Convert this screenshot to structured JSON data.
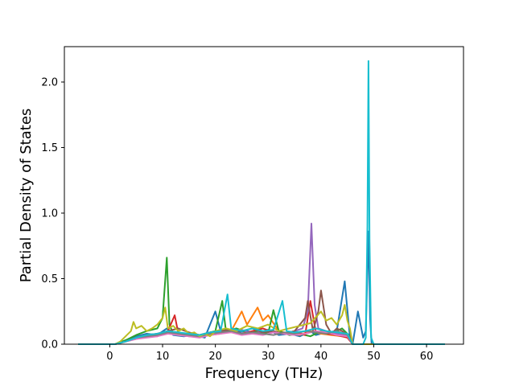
{
  "chart_data": {
    "type": "line",
    "title": "",
    "xlabel": "Frequency (THz)",
    "ylabel": "Partial Density of States",
    "xlim": [
      -8.6,
      67.0
    ],
    "ylim": [
      0.0,
      2.27
    ],
    "xticks": [
      0,
      10,
      20,
      30,
      40,
      50,
      60
    ],
    "yticks": [
      0.0,
      0.5,
      1.0,
      1.5,
      2.0
    ],
    "xtick_labels": [
      "0",
      "10",
      "20",
      "30",
      "40",
      "50",
      "60"
    ],
    "ytick_labels": [
      "0.0",
      "0.5",
      "1.0",
      "1.5",
      "2.0"
    ],
    "grid": false,
    "legend": "none",
    "x_range_of_curves": [
      -6.0,
      63.5
    ],
    "series": [
      {
        "color": "#1f77b4",
        "x": [
          -6,
          1,
          3,
          5,
          7,
          9,
          10.8,
          12,
          14,
          16,
          18,
          20,
          21,
          22,
          24,
          26,
          28,
          30,
          32,
          34,
          36,
          38,
          39,
          41,
          43,
          44.5,
          45.5,
          46,
          47,
          48,
          48.5,
          49,
          49.3,
          49.6,
          50,
          52,
          63.5
        ],
        "y": [
          0,
          0,
          0.03,
          0.06,
          0.08,
          0.07,
          0.12,
          0.07,
          0.06,
          0.07,
          0.05,
          0.25,
          0.1,
          0.12,
          0.09,
          0.1,
          0.08,
          0.11,
          0.07,
          0.08,
          0.06,
          0.1,
          0.07,
          0.09,
          0.1,
          0.48,
          0.05,
          0,
          0.25,
          0.05,
          0.1,
          0.86,
          0.2,
          0,
          0,
          0,
          0
        ]
      },
      {
        "color": "#ff7f0e",
        "x": [
          -6,
          1,
          3,
          5,
          7,
          9,
          11,
          13,
          16,
          19,
          21,
          23,
          25,
          26,
          28,
          29,
          30,
          32,
          34,
          36,
          38,
          40,
          42,
          44,
          45.5,
          46,
          63.5
        ],
        "y": [
          0,
          0,
          0.02,
          0.05,
          0.07,
          0.06,
          0.1,
          0.08,
          0.06,
          0.07,
          0.08,
          0.1,
          0.25,
          0.15,
          0.28,
          0.18,
          0.22,
          0.1,
          0.08,
          0.07,
          0.1,
          0.08,
          0.07,
          0.06,
          0.05,
          0,
          0
        ]
      },
      {
        "color": "#2ca02c",
        "x": [
          -6,
          1,
          3,
          5,
          7,
          9,
          10,
          10.8,
          11.3,
          12,
          14,
          16,
          18,
          20,
          21.3,
          22,
          24,
          26,
          28,
          30,
          31,
          32,
          34,
          36,
          38,
          40,
          42,
          44,
          45.5,
          46,
          63.5
        ],
        "y": [
          0,
          0,
          0.03,
          0.07,
          0.1,
          0.12,
          0.2,
          0.66,
          0.15,
          0.08,
          0.07,
          0.06,
          0.08,
          0.1,
          0.33,
          0.1,
          0.12,
          0.09,
          0.1,
          0.08,
          0.26,
          0.1,
          0.07,
          0.08,
          0.06,
          0.1,
          0.08,
          0.12,
          0.06,
          0,
          0
        ]
      },
      {
        "color": "#d62728",
        "x": [
          -6,
          1,
          3,
          5,
          7,
          9,
          11,
          12.3,
          13,
          15,
          17,
          19,
          21,
          23,
          25,
          27,
          29,
          31,
          33,
          35,
          37,
          38,
          39,
          41,
          43,
          45,
          46,
          63.5
        ],
        "y": [
          0,
          0,
          0.02,
          0.05,
          0.06,
          0.08,
          0.1,
          0.22,
          0.08,
          0.06,
          0.07,
          0.08,
          0.09,
          0.1,
          0.08,
          0.1,
          0.12,
          0.09,
          0.08,
          0.1,
          0.07,
          0.33,
          0.1,
          0.08,
          0.07,
          0.05,
          0,
          0
        ]
      },
      {
        "color": "#9467bd",
        "x": [
          -6,
          1,
          3,
          5,
          7,
          9,
          11,
          13,
          15,
          17,
          19,
          21,
          23,
          25,
          27,
          29,
          31,
          33,
          35,
          36.5,
          37.5,
          38.2,
          38.8,
          39.5,
          41,
          43,
          44.5,
          45.5,
          46,
          63.5
        ],
        "y": [
          0,
          0,
          0.02,
          0.04,
          0.06,
          0.07,
          0.09,
          0.08,
          0.07,
          0.06,
          0.08,
          0.1,
          0.09,
          0.11,
          0.08,
          0.1,
          0.09,
          0.08,
          0.1,
          0.12,
          0.25,
          0.92,
          0.3,
          0.12,
          0.1,
          0.08,
          0.07,
          0.05,
          0,
          0
        ]
      },
      {
        "color": "#8c564b",
        "x": [
          -6,
          1,
          3,
          5,
          7,
          9,
          11,
          13,
          15,
          17,
          19,
          21,
          23,
          25,
          27,
          29,
          31,
          33,
          35,
          37,
          37.5,
          38.5,
          39.5,
          40,
          41,
          42,
          43,
          44,
          45.5,
          46,
          63.5
        ],
        "y": [
          0,
          0,
          0.02,
          0.05,
          0.07,
          0.08,
          0.1,
          0.12,
          0.09,
          0.07,
          0.09,
          0.1,
          0.11,
          0.1,
          0.12,
          0.09,
          0.1,
          0.08,
          0.1,
          0.2,
          0.33,
          0.1,
          0.25,
          0.41,
          0.15,
          0.08,
          0.12,
          0.1,
          0.06,
          0,
          0
        ]
      },
      {
        "color": "#e377c2",
        "x": [
          -6,
          1,
          3,
          5,
          7,
          9,
          11,
          13,
          15,
          17,
          19,
          21,
          23,
          25,
          27,
          29,
          31,
          33,
          35,
          37,
          39,
          41,
          43,
          45,
          46,
          63.5
        ],
        "y": [
          0,
          0,
          0.02,
          0.04,
          0.05,
          0.06,
          0.08,
          0.07,
          0.06,
          0.05,
          0.07,
          0.08,
          0.09,
          0.07,
          0.08,
          0.07,
          0.09,
          0.08,
          0.07,
          0.08,
          0.1,
          0.09,
          0.07,
          0.06,
          0,
          0
        ]
      },
      {
        "color": "#7f7f7f",
        "x": [
          -6,
          1,
          3,
          5,
          7,
          9,
          11,
          13,
          15,
          17,
          19,
          21,
          23,
          25,
          27,
          29,
          31,
          33,
          35,
          37,
          39,
          41,
          43,
          45,
          46,
          63.5
        ],
        "y": [
          0,
          0,
          0.02,
          0.05,
          0.06,
          0.07,
          0.09,
          0.08,
          0.07,
          0.06,
          0.08,
          0.09,
          0.1,
          0.08,
          0.09,
          0.08,
          0.07,
          0.09,
          0.08,
          0.1,
          0.09,
          0.08,
          0.1,
          0.07,
          0,
          0
        ]
      },
      {
        "color": "#bcbd22",
        "x": [
          -6,
          1,
          2,
          3,
          4,
          4.5,
          5,
          6,
          7,
          8,
          9,
          10,
          10.5,
          11,
          12,
          13,
          14,
          15,
          16,
          17,
          18,
          19,
          20,
          22,
          24,
          26,
          28,
          30,
          32,
          34,
          36,
          38,
          40,
          41,
          42,
          43,
          44,
          44.5,
          45,
          45.5,
          46,
          63.5
        ],
        "y": [
          0,
          0,
          0.02,
          0.06,
          0.1,
          0.17,
          0.12,
          0.14,
          0.1,
          0.12,
          0.15,
          0.2,
          0.28,
          0.12,
          0.14,
          0.1,
          0.12,
          0.08,
          0.09,
          0.06,
          0.08,
          0.06,
          0.1,
          0.12,
          0.1,
          0.14,
          0.12,
          0.15,
          0.1,
          0.12,
          0.14,
          0.16,
          0.25,
          0.18,
          0.2,
          0.15,
          0.22,
          0.3,
          0.18,
          0.12,
          0,
          0
        ]
      },
      {
        "color": "#17becf",
        "x": [
          -6,
          1,
          3,
          5,
          7,
          9,
          11,
          13,
          15,
          17,
          19,
          21,
          22.3,
          23,
          25,
          27,
          29,
          31,
          32.7,
          33.5,
          35,
          37,
          39,
          41,
          43,
          45,
          46,
          47,
          48,
          48.5,
          48.8,
          49.0,
          49.2,
          49.5,
          50,
          63.5
        ],
        "y": [
          0,
          0,
          0.02,
          0.05,
          0.07,
          0.08,
          0.1,
          0.09,
          0.08,
          0.07,
          0.09,
          0.1,
          0.38,
          0.12,
          0.1,
          0.12,
          0.1,
          0.11,
          0.33,
          0.1,
          0.09,
          0.1,
          0.12,
          0.1,
          0.09,
          0.08,
          0,
          0,
          0,
          0.05,
          0.9,
          2.16,
          0.8,
          0.05,
          0,
          0
        ]
      }
    ]
  }
}
